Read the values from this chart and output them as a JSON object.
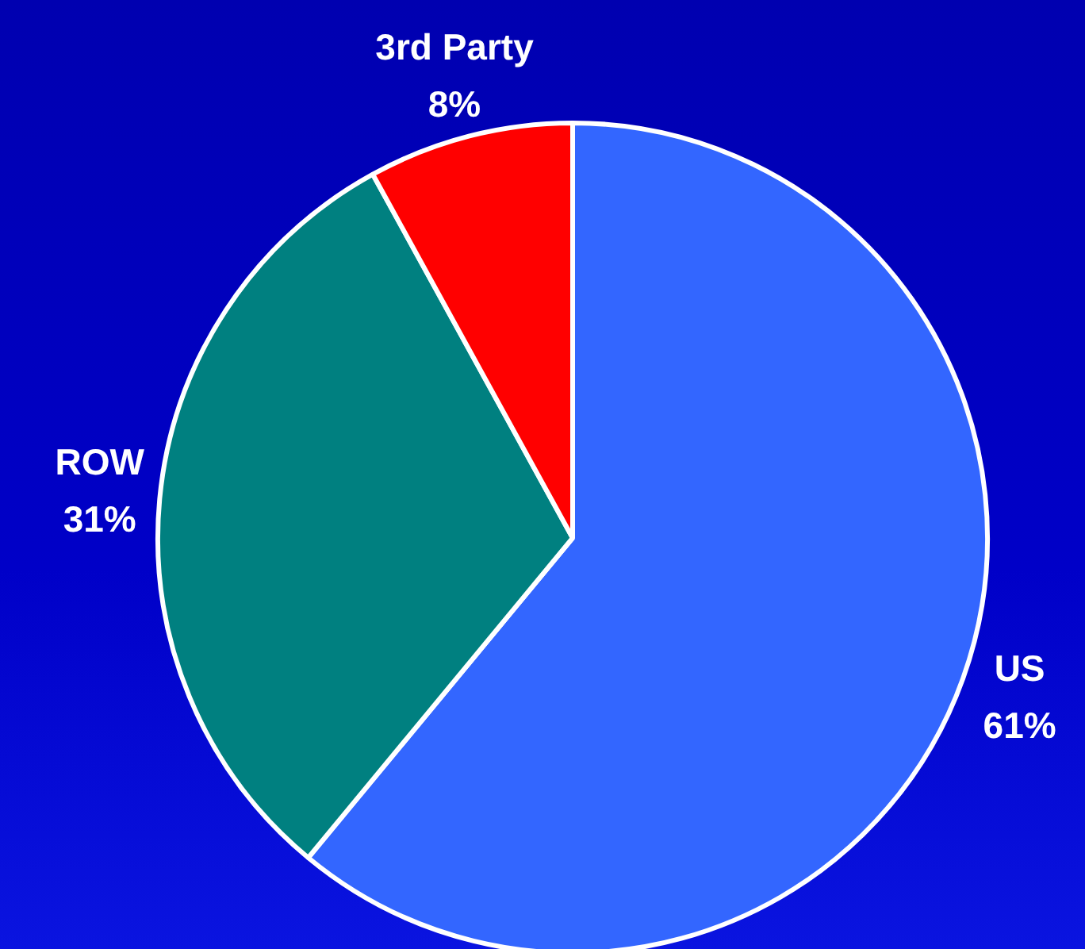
{
  "chart_data": {
    "type": "pie",
    "categories": [
      "US",
      "ROW",
      "3rd Party"
    ],
    "values": [
      61,
      31,
      8
    ],
    "colors": [
      "#3366ff",
      "#008080",
      "#ff0000"
    ],
    "value_labels": [
      "61%",
      "31%",
      "8%"
    ],
    "legend": false
  }
}
